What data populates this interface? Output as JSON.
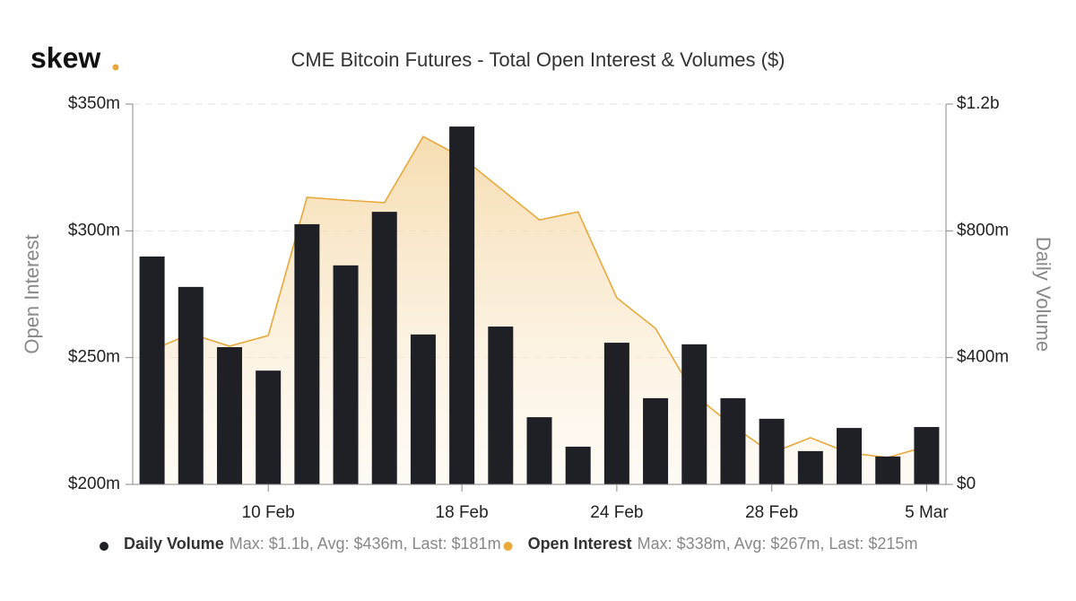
{
  "logo": "skew",
  "chart_data": {
    "type": "bar-area",
    "title": "CME Bitcoin Futures - Total Open Interest & Volumes ($)",
    "ylabel": "Open Interest",
    "y2label": "Daily Volume",
    "categories": [
      null,
      null,
      null,
      "10 Feb",
      null,
      null,
      null,
      null,
      "18 Feb",
      null,
      null,
      null,
      "24 Feb",
      null,
      null,
      null,
      "28 Feb",
      null,
      null,
      null,
      "5 Mar"
    ],
    "ylim": [
      200,
      350
    ],
    "yticks": [
      {
        "value": 200,
        "label": "$200m"
      },
      {
        "value": 250,
        "label": "$250m"
      },
      {
        "value": 300,
        "label": "$300m"
      },
      {
        "value": 350,
        "label": "$350m"
      }
    ],
    "y2lim": [
      0,
      1200
    ],
    "y2ticks": [
      {
        "value": 0,
        "label": "$0"
      },
      {
        "value": 400,
        "label": "$400m"
      },
      {
        "value": 800,
        "label": "$800m"
      },
      {
        "value": 1200,
        "label": "$1.2b"
      }
    ],
    "grid": true,
    "series": [
      {
        "name": "Daily Volume",
        "type": "bar",
        "axis": "y2",
        "color": "#1f2026",
        "stats": "Max: $1.1b, Avg: $436m, Last: $181m",
        "values": [
          719,
          623,
          433,
          359,
          821,
          691,
          860,
          473,
          1129,
          498,
          212,
          119,
          447,
          272,
          442,
          272,
          207,
          105,
          178,
          88,
          181
        ]
      },
      {
        "name": "Open Interest",
        "type": "area",
        "color": "#e8a93a",
        "stats": "Max: $338m, Avg: $267m, Last: $215m",
        "values": [
          253,
          259.4,
          254.5,
          258.7,
          313.2,
          312.1,
          311.1,
          337.2,
          329,
          316.7,
          304.3,
          307.5,
          273.6,
          261.5,
          235.4,
          223,
          212.4,
          218.4,
          212.4,
          210.6,
          215
        ]
      }
    ]
  }
}
